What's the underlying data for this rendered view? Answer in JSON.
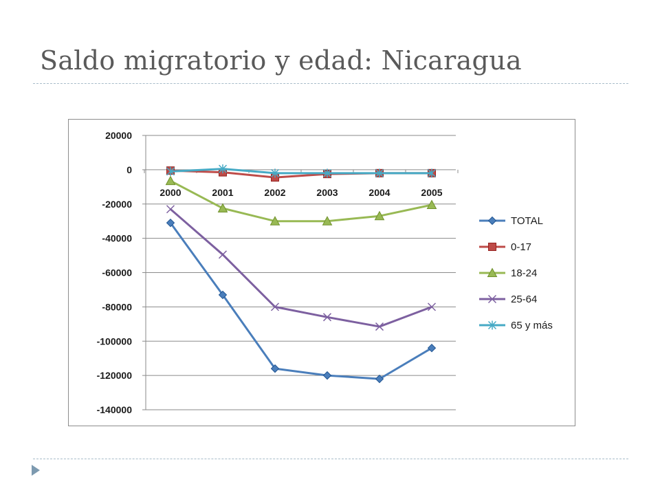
{
  "slide": {
    "title": "Saldo migratorio y edad: Nicaragua"
  },
  "colors": {
    "title": "#5a5a5a",
    "divider": "#a7bcc9",
    "bullet": "#7d9ab0"
  },
  "chart_data": {
    "type": "line",
    "title": "",
    "xlabel": "",
    "ylabel": "",
    "categories": [
      "2000",
      "2001",
      "2002",
      "2003",
      "2004",
      "2005"
    ],
    "ylim": [
      -140000,
      20000
    ],
    "yticks": [
      20000,
      0,
      -20000,
      -40000,
      -60000,
      -80000,
      -100000,
      -120000,
      -140000
    ],
    "grid": true,
    "legend_position": "right",
    "series": [
      {
        "name": "TOTAL",
        "color": "#4a7ebb",
        "marker": "diamond",
        "values": [
          -31000,
          -73000,
          -116000,
          -120000,
          -122000,
          -104000
        ]
      },
      {
        "name": "0-17",
        "color": "#be4b48",
        "marker": "square",
        "values": [
          -500,
          -1500,
          -4500,
          -2500,
          -2000,
          -2000
        ]
      },
      {
        "name": "18-24",
        "color": "#98b954",
        "marker": "triangle",
        "values": [
          -6500,
          -22500,
          -30000,
          -30000,
          -27000,
          -20500
        ]
      },
      {
        "name": "25-64",
        "color": "#7d60a0",
        "marker": "x",
        "values": [
          -23000,
          -49500,
          -80000,
          -86000,
          -91500,
          -80000
        ]
      },
      {
        "name": "65 y más",
        "color": "#46aac5",
        "marker": "asterisk",
        "values": [
          -1000,
          500,
          -2000,
          -2000,
          -2000,
          -2000
        ]
      }
    ]
  }
}
